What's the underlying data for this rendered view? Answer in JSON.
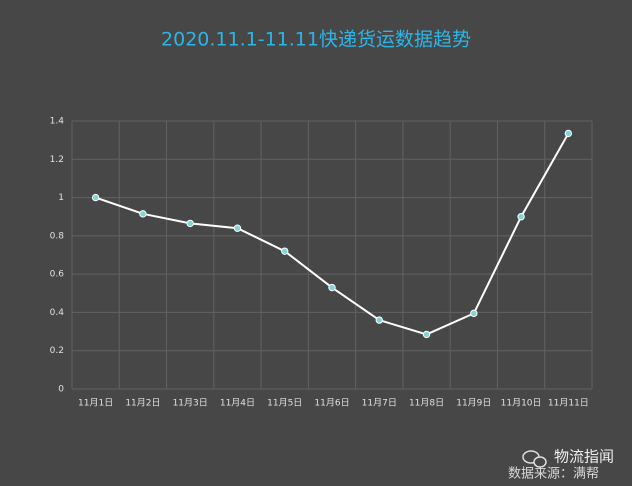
{
  "chart_data": {
    "type": "line",
    "title": "2020.11.1-11.11快递货运数据趋势",
    "categories": [
      "11月1日",
      "11月2日",
      "11月3日",
      "11月4日",
      "11月5日",
      "11月6日",
      "11月7日",
      "11月8日",
      "11月9日",
      "11月10日",
      "11月11日"
    ],
    "values": [
      1.0,
      0.915,
      0.865,
      0.84,
      0.72,
      0.53,
      0.36,
      0.285,
      0.395,
      0.9,
      1.335
    ],
    "color": "#ffffff",
    "marker_color": "#7fd6d6",
    "ylim": [
      0,
      1.4
    ],
    "yticks": [
      0,
      0.2,
      0.4,
      0.6,
      0.8,
      1,
      1.2,
      1.4
    ],
    "grid": true,
    "annotations": [
      "物流指闻",
      "数据来源：满帮"
    ]
  }
}
